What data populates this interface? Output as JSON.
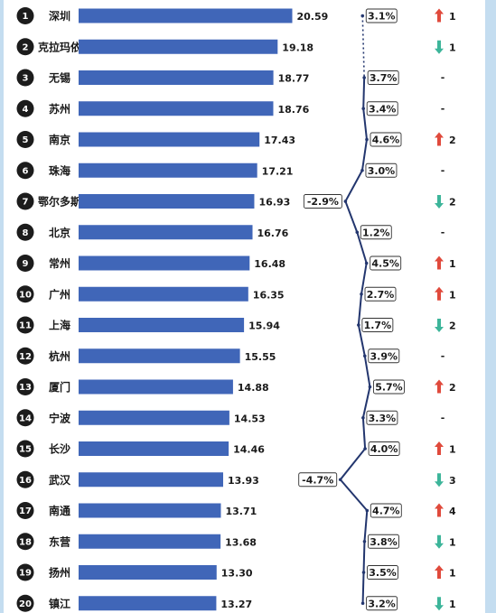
{
  "chart_data": {
    "type": "bar",
    "orientation": "horizontal",
    "rows": [
      {
        "rank": "1",
        "city": "深圳",
        "value": 20.59,
        "value_label": "20.59",
        "growth": 3.1,
        "growth_label": "3.1%",
        "change": "up",
        "change_label": "1"
      },
      {
        "rank": "2",
        "city": "克拉玛依",
        "value": 19.18,
        "value_label": "19.18",
        "growth": null,
        "growth_label": "",
        "change": "down",
        "change_label": "1"
      },
      {
        "rank": "3",
        "city": "无锡",
        "value": 18.77,
        "value_label": "18.77",
        "growth": 3.7,
        "growth_label": "3.7%",
        "change": "none",
        "change_label": "-"
      },
      {
        "rank": "4",
        "city": "苏州",
        "value": 18.76,
        "value_label": "18.76",
        "growth": 3.4,
        "growth_label": "3.4%",
        "change": "none",
        "change_label": "-"
      },
      {
        "rank": "5",
        "city": "南京",
        "value": 17.43,
        "value_label": "17.43",
        "growth": 4.6,
        "growth_label": "4.6%",
        "change": "up",
        "change_label": "2"
      },
      {
        "rank": "6",
        "city": "珠海",
        "value": 17.21,
        "value_label": "17.21",
        "growth": 3.0,
        "growth_label": "3.0%",
        "change": "none",
        "change_label": "-"
      },
      {
        "rank": "7",
        "city": "鄂尔多斯",
        "value": 16.93,
        "value_label": "16.93",
        "growth": -2.9,
        "growth_label": "-2.9%",
        "change": "down",
        "change_label": "2"
      },
      {
        "rank": "8",
        "city": "北京",
        "value": 16.76,
        "value_label": "16.76",
        "growth": 1.2,
        "growth_label": "1.2%",
        "change": "none",
        "change_label": "-"
      },
      {
        "rank": "9",
        "city": "常州",
        "value": 16.48,
        "value_label": "16.48",
        "growth": 4.5,
        "growth_label": "4.5%",
        "change": "up",
        "change_label": "1"
      },
      {
        "rank": "10",
        "city": "广州",
        "value": 16.35,
        "value_label": "16.35",
        "growth": 2.7,
        "growth_label": "2.7%",
        "change": "up",
        "change_label": "1"
      },
      {
        "rank": "11",
        "city": "上海",
        "value": 15.94,
        "value_label": "15.94",
        "growth": 1.7,
        "growth_label": "1.7%",
        "change": "down",
        "change_label": "2"
      },
      {
        "rank": "12",
        "city": "杭州",
        "value": 15.55,
        "value_label": "15.55",
        "growth": 3.9,
        "growth_label": "3.9%",
        "change": "none",
        "change_label": "-"
      },
      {
        "rank": "13",
        "city": "厦门",
        "value": 14.88,
        "value_label": "14.88",
        "growth": 5.7,
        "growth_label": "5.7%",
        "change": "up",
        "change_label": "2"
      },
      {
        "rank": "14",
        "city": "宁波",
        "value": 14.53,
        "value_label": "14.53",
        "growth": 3.3,
        "growth_label": "3.3%",
        "change": "none",
        "change_label": "-"
      },
      {
        "rank": "15",
        "city": "长沙",
        "value": 14.46,
        "value_label": "14.46",
        "growth": 4.0,
        "growth_label": "4.0%",
        "change": "up",
        "change_label": "1"
      },
      {
        "rank": "16",
        "city": "武汉",
        "value": 13.93,
        "value_label": "13.93",
        "growth": -4.7,
        "growth_label": "-4.7%",
        "change": "down",
        "change_label": "3"
      },
      {
        "rank": "17",
        "city": "南通",
        "value": 13.71,
        "value_label": "13.71",
        "growth": 4.7,
        "growth_label": "4.7%",
        "change": "up",
        "change_label": "4"
      },
      {
        "rank": "18",
        "city": "东营",
        "value": 13.68,
        "value_label": "13.68",
        "growth": 3.8,
        "growth_label": "3.8%",
        "change": "down",
        "change_label": "1"
      },
      {
        "rank": "19",
        "city": "扬州",
        "value": 13.3,
        "value_label": "13.30",
        "growth": 3.5,
        "growth_label": "3.5%",
        "change": "up",
        "change_label": "1"
      },
      {
        "rank": "20",
        "city": "镇江",
        "value": 13.27,
        "value_label": "13.27",
        "growth": 3.2,
        "growth_label": "3.2%",
        "change": "down",
        "change_label": "1"
      }
    ],
    "grid": false,
    "colors": {
      "bar": "#4066b8",
      "rank_badge": "#1c1c1c",
      "growth_line": "#23366e",
      "up_arrow": "#e04a3c",
      "down_arrow": "#3db59a",
      "frame": "#c4ddf0"
    }
  }
}
